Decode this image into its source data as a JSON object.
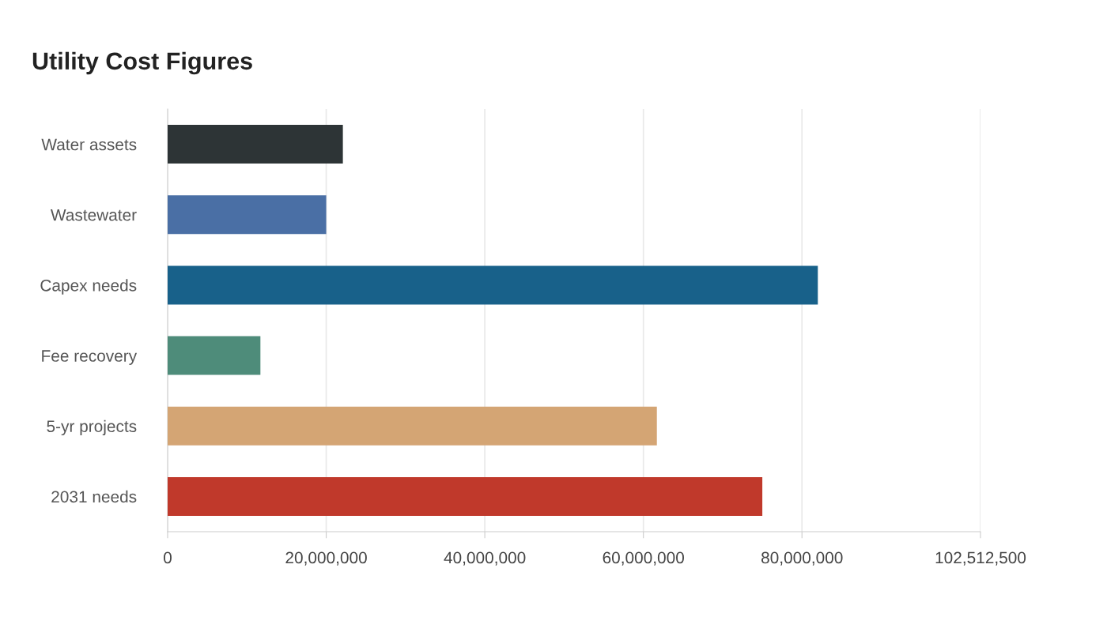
{
  "chart_data": {
    "type": "bar",
    "orientation": "horizontal",
    "title": "Utility Cost Figures",
    "categories": [
      "Water assets",
      "Wastewater",
      "Capex needs",
      "Fee recovery",
      "5-yr projects",
      "2031 needs"
    ],
    "values": [
      22100000,
      20000000,
      82000000,
      11700000,
      61700000,
      75000000
    ],
    "colors": [
      "#2d3436",
      "#4a6fa5",
      "#18618a",
      "#4e8c7a",
      "#d4a574",
      "#c0392b"
    ],
    "xlim": [
      0,
      102512500
    ],
    "xticks": [
      0,
      {
        "value": 20000000,
        "label": "20,000,000"
      },
      {
        "value": 40000000,
        "label": "40,000,000"
      },
      {
        "value": 60000000,
        "label": "60,000,000"
      },
      {
        "value": 80000000,
        "label": "80,000,000"
      },
      {
        "value": 102512500,
        "label": "102,512,500"
      }
    ],
    "grid": "x"
  }
}
